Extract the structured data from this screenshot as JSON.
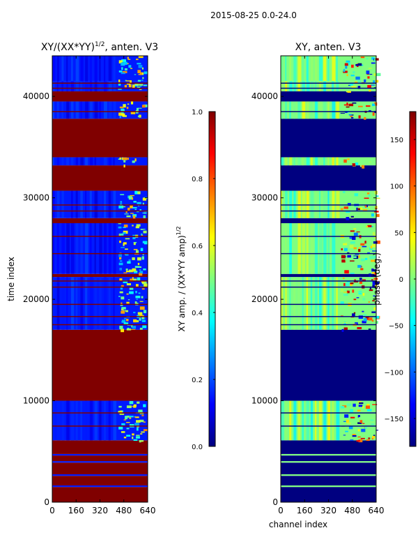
{
  "figure": {
    "suptitle": "2015-08-25 0.0-24.0"
  },
  "chart_data": [
    {
      "type": "heatmap",
      "title_main": "XY/(XX*YY)",
      "title_sup": "1/2",
      "title_tail": ", anten. V3",
      "xlabel": "",
      "ylabel": "time index",
      "xlim": [
        0,
        640
      ],
      "ylim": [
        0,
        44000
      ],
      "x_ticks": [
        0,
        160,
        320,
        480,
        640
      ],
      "y_ticks": [
        0,
        10000,
        20000,
        30000,
        40000
      ],
      "colorbar": {
        "label_main": "XY amp. / (XX*YY amp)",
        "label_sup": "1/2",
        "range": [
          0.0,
          1.0
        ],
        "ticks": [
          "0.0",
          "0.2",
          "0.4",
          "0.6",
          "0.8",
          "1.0"
        ],
        "tick_values": [
          0.0,
          0.2,
          0.4,
          0.6,
          0.8,
          1.0
        ],
        "colormap": "jet"
      },
      "bands": [
        [
          0,
          1500,
          1.0
        ],
        [
          1500,
          1650,
          0.15
        ],
        [
          1650,
          2600,
          1.0
        ],
        [
          2600,
          2750,
          0.15
        ],
        [
          2750,
          3900,
          1.0
        ],
        [
          3900,
          4050,
          0.15
        ],
        [
          4050,
          4600,
          1.0
        ],
        [
          4600,
          4750,
          0.15
        ],
        [
          4750,
          6100,
          1.0
        ],
        [
          6100,
          10000,
          0.15
        ],
        [
          10000,
          17000,
          1.0
        ],
        [
          17000,
          22200,
          0.15
        ],
        [
          22200,
          22500,
          1.0
        ],
        [
          22500,
          27500,
          0.15
        ],
        [
          27500,
          28000,
          1.0
        ],
        [
          28000,
          30700,
          0.15
        ],
        [
          30700,
          33200,
          1.0
        ],
        [
          33200,
          34000,
          0.15
        ],
        [
          34000,
          37800,
          1.0
        ],
        [
          37800,
          39500,
          0.15
        ],
        [
          39500,
          40500,
          1.0
        ],
        [
          40500,
          41500,
          0.15
        ],
        [
          41500,
          44000,
          0.15
        ]
      ],
      "lines": [
        7500,
        8800,
        17500,
        18300,
        19500,
        21200,
        21800,
        24500,
        26200,
        28700,
        29300,
        38500,
        40800,
        41300
      ],
      "hot_region": [
        440,
        620
      ]
    },
    {
      "type": "heatmap",
      "title_main": "XY, anten. V3",
      "title_sup": "",
      "title_tail": "",
      "xlabel": "channel index",
      "ylabel": "",
      "xlim": [
        0,
        640
      ],
      "ylim": [
        0,
        44000
      ],
      "x_ticks": [
        0,
        160,
        320,
        480,
        640
      ],
      "y_ticks": [
        0,
        10000,
        20000,
        30000,
        40000
      ],
      "colorbar": {
        "label_main": "phase (deg.)",
        "label_sup": "",
        "range": [
          -180,
          180
        ],
        "ticks": [
          "150",
          "100",
          "50",
          "0",
          "−50",
          "−100",
          "−150"
        ],
        "tick_values": [
          150,
          100,
          50,
          0,
          -50,
          -100,
          -150
        ],
        "colormap": "jet"
      },
      "bands": [
        [
          0,
          1500,
          0.0
        ],
        [
          1500,
          1650,
          0.5
        ],
        [
          1650,
          2600,
          0.0
        ],
        [
          2600,
          2750,
          0.5
        ],
        [
          2750,
          3900,
          0.0
        ],
        [
          3900,
          4050,
          0.5
        ],
        [
          4050,
          4600,
          0.0
        ],
        [
          4600,
          4750,
          0.5
        ],
        [
          4750,
          6100,
          0.0
        ],
        [
          6100,
          10000,
          0.5
        ],
        [
          10000,
          17000,
          0.0
        ],
        [
          17000,
          22200,
          0.5
        ],
        [
          22200,
          22500,
          0.0
        ],
        [
          22500,
          27500,
          0.5
        ],
        [
          27500,
          28000,
          0.0
        ],
        [
          28000,
          30700,
          0.5
        ],
        [
          30700,
          33200,
          0.0
        ],
        [
          33200,
          34000,
          0.5
        ],
        [
          34000,
          37800,
          0.0
        ],
        [
          37800,
          39500,
          0.5
        ],
        [
          39500,
          40500,
          0.0
        ],
        [
          40500,
          41500,
          0.5
        ],
        [
          41500,
          44000,
          0.5
        ]
      ],
      "lines": [
        7500,
        8800,
        17500,
        18300,
        19500,
        21200,
        21800,
        24500,
        26200,
        28700,
        29300,
        38500,
        40800,
        41300
      ],
      "hot_region": [
        400,
        640
      ]
    }
  ]
}
